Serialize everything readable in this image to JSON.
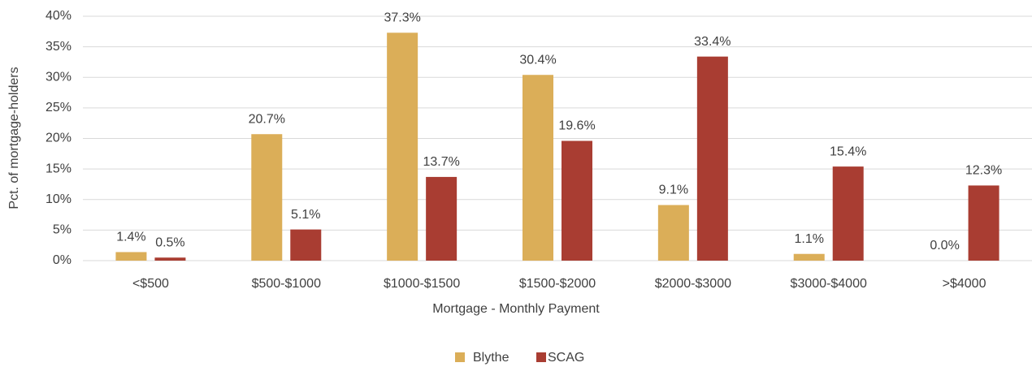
{
  "chart_data": {
    "type": "bar",
    "xlabel": "Mortgage - Monthly Payment",
    "ylabel": "Pct. of mortgage-holders",
    "categories": [
      "<$500",
      "$500-$1000",
      "$1000-$1500",
      "$1500-$2000",
      "$2000-$3000",
      "$3000-$4000",
      ">$4000"
    ],
    "series": [
      {
        "name": "Blythe",
        "color": "#dbae58",
        "values": [
          1.4,
          20.7,
          37.3,
          30.4,
          9.1,
          1.1,
          0.0
        ],
        "value_labels": [
          "1.4%",
          "20.7%",
          "37.3%",
          "30.4%",
          "9.1%",
          "1.1%",
          "0.0%"
        ]
      },
      {
        "name": "SCAG",
        "color": "#a93d32",
        "values": [
          0.5,
          5.1,
          13.7,
          19.6,
          33.4,
          15.4,
          12.3
        ],
        "value_labels": [
          "0.5%",
          "5.1%",
          "13.7%",
          "19.6%",
          "33.4%",
          "15.4%",
          "12.3%"
        ]
      }
    ],
    "ylim": [
      0,
      40
    ],
    "yticks": [
      {
        "value": 0,
        "label": "0%"
      },
      {
        "value": 5,
        "label": "5%"
      },
      {
        "value": 10,
        "label": "10%"
      },
      {
        "value": 15,
        "label": "15%"
      },
      {
        "value": 20,
        "label": "20%"
      },
      {
        "value": 25,
        "label": "25%"
      },
      {
        "value": 30,
        "label": "30%"
      },
      {
        "value": 35,
        "label": "35%"
      },
      {
        "value": 40,
        "label": "40%"
      }
    ],
    "grid": true,
    "legend": "bottom"
  }
}
